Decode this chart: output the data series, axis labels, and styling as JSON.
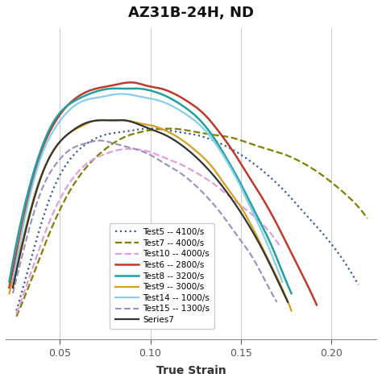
{
  "title": "AZ31B-24H, ND",
  "xlabel": "True Strain",
  "background_color": "#ffffff",
  "grid_color": "#cccccc",
  "xlim": [
    0.02,
    0.225
  ],
  "ylim": [
    0.0,
    1.08
  ],
  "xticks": [
    0.05,
    0.1,
    0.15,
    0.2
  ],
  "series": [
    {
      "label": "Test5 -- 4100/s",
      "color": "#3B5998",
      "linestyle": "dotted",
      "linewidth": 1.6,
      "points": [
        [
          0.026,
          0.1
        ],
        [
          0.035,
          0.3
        ],
        [
          0.045,
          0.5
        ],
        [
          0.055,
          0.62
        ],
        [
          0.065,
          0.68
        ],
        [
          0.075,
          0.71
        ],
        [
          0.085,
          0.72
        ],
        [
          0.095,
          0.73
        ],
        [
          0.105,
          0.73
        ],
        [
          0.115,
          0.72
        ],
        [
          0.125,
          0.71
        ],
        [
          0.135,
          0.69
        ],
        [
          0.145,
          0.66
        ],
        [
          0.155,
          0.62
        ],
        [
          0.165,
          0.57
        ],
        [
          0.175,
          0.51
        ],
        [
          0.185,
          0.44
        ],
        [
          0.195,
          0.37
        ],
        [
          0.205,
          0.29
        ],
        [
          0.215,
          0.19
        ]
      ]
    },
    {
      "label": "Test7 -- 4000/s",
      "color": "#808000",
      "linestyle": "dashed",
      "linewidth": 1.6,
      "points": [
        [
          0.026,
          0.08
        ],
        [
          0.035,
          0.22
        ],
        [
          0.045,
          0.38
        ],
        [
          0.055,
          0.51
        ],
        [
          0.065,
          0.6
        ],
        [
          0.075,
          0.66
        ],
        [
          0.085,
          0.7
        ],
        [
          0.095,
          0.72
        ],
        [
          0.105,
          0.73
        ],
        [
          0.115,
          0.73
        ],
        [
          0.125,
          0.72
        ],
        [
          0.135,
          0.71
        ],
        [
          0.145,
          0.7
        ],
        [
          0.155,
          0.68
        ],
        [
          0.165,
          0.66
        ],
        [
          0.175,
          0.64
        ],
        [
          0.185,
          0.61
        ],
        [
          0.195,
          0.57
        ],
        [
          0.205,
          0.52
        ],
        [
          0.215,
          0.46
        ],
        [
          0.22,
          0.42
        ]
      ]
    },
    {
      "label": "Test10 -- 4000/s",
      "color": "#DDA0DD",
      "linestyle": "dashed",
      "linewidth": 1.6,
      "points": [
        [
          0.026,
          0.09
        ],
        [
          0.035,
          0.25
        ],
        [
          0.045,
          0.42
        ],
        [
          0.055,
          0.54
        ],
        [
          0.063,
          0.6
        ],
        [
          0.07,
          0.63
        ],
        [
          0.078,
          0.65
        ],
        [
          0.085,
          0.66
        ],
        [
          0.092,
          0.66
        ],
        [
          0.1,
          0.65
        ],
        [
          0.108,
          0.63
        ],
        [
          0.116,
          0.61
        ],
        [
          0.125,
          0.58
        ],
        [
          0.135,
          0.54
        ],
        [
          0.145,
          0.49
        ],
        [
          0.155,
          0.44
        ],
        [
          0.165,
          0.38
        ],
        [
          0.172,
          0.32
        ]
      ]
    },
    {
      "label": "Test6 -- 2800/s",
      "color": "#C0392B",
      "linestyle": "solid",
      "linewidth": 1.8,
      "points": [
        [
          0.022,
          0.18
        ],
        [
          0.03,
          0.42
        ],
        [
          0.038,
          0.62
        ],
        [
          0.046,
          0.74
        ],
        [
          0.054,
          0.81
        ],
        [
          0.062,
          0.85
        ],
        [
          0.07,
          0.87
        ],
        [
          0.078,
          0.88
        ],
        [
          0.086,
          0.89
        ],
        [
          0.092,
          0.89
        ],
        [
          0.098,
          0.88
        ],
        [
          0.106,
          0.87
        ],
        [
          0.114,
          0.85
        ],
        [
          0.122,
          0.82
        ],
        [
          0.13,
          0.78
        ],
        [
          0.138,
          0.72
        ],
        [
          0.146,
          0.65
        ],
        [
          0.154,
          0.57
        ],
        [
          0.162,
          0.49
        ],
        [
          0.17,
          0.4
        ],
        [
          0.178,
          0.3
        ],
        [
          0.186,
          0.2
        ],
        [
          0.192,
          0.12
        ]
      ]
    },
    {
      "label": "Test8 -- 3200/s",
      "color": "#20A0A0",
      "linestyle": "solid",
      "linewidth": 1.8,
      "points": [
        [
          0.022,
          0.2
        ],
        [
          0.03,
          0.45
        ],
        [
          0.038,
          0.63
        ],
        [
          0.046,
          0.75
        ],
        [
          0.054,
          0.81
        ],
        [
          0.062,
          0.84
        ],
        [
          0.07,
          0.86
        ],
        [
          0.078,
          0.87
        ],
        [
          0.086,
          0.87
        ],
        [
          0.094,
          0.87
        ],
        [
          0.102,
          0.86
        ],
        [
          0.11,
          0.84
        ],
        [
          0.118,
          0.81
        ],
        [
          0.126,
          0.77
        ],
        [
          0.134,
          0.71
        ],
        [
          0.142,
          0.63
        ],
        [
          0.15,
          0.54
        ],
        [
          0.158,
          0.44
        ],
        [
          0.166,
          0.34
        ],
        [
          0.172,
          0.25
        ],
        [
          0.178,
          0.16
        ]
      ]
    },
    {
      "label": "Test9 -- 3000/s",
      "color": "#D4A020",
      "linestyle": "solid",
      "linewidth": 1.6,
      "points": [
        [
          0.022,
          0.16
        ],
        [
          0.03,
          0.36
        ],
        [
          0.038,
          0.54
        ],
        [
          0.046,
          0.65
        ],
        [
          0.054,
          0.71
        ],
        [
          0.062,
          0.74
        ],
        [
          0.07,
          0.76
        ],
        [
          0.078,
          0.76
        ],
        [
          0.086,
          0.76
        ],
        [
          0.094,
          0.75
        ],
        [
          0.102,
          0.74
        ],
        [
          0.11,
          0.72
        ],
        [
          0.118,
          0.69
        ],
        [
          0.126,
          0.65
        ],
        [
          0.134,
          0.6
        ],
        [
          0.142,
          0.53
        ],
        [
          0.15,
          0.46
        ],
        [
          0.158,
          0.37
        ],
        [
          0.165,
          0.28
        ],
        [
          0.172,
          0.19
        ],
        [
          0.178,
          0.1
        ]
      ]
    },
    {
      "label": "Test14 -- 1000/s",
      "color": "#87CEEB",
      "linestyle": "solid",
      "linewidth": 1.6,
      "points": [
        [
          0.024,
          0.2
        ],
        [
          0.032,
          0.46
        ],
        [
          0.04,
          0.64
        ],
        [
          0.048,
          0.74
        ],
        [
          0.056,
          0.8
        ],
        [
          0.064,
          0.83
        ],
        [
          0.072,
          0.84
        ],
        [
          0.08,
          0.85
        ],
        [
          0.088,
          0.85
        ],
        [
          0.096,
          0.84
        ],
        [
          0.104,
          0.83
        ],
        [
          0.112,
          0.81
        ],
        [
          0.12,
          0.78
        ],
        [
          0.128,
          0.74
        ],
        [
          0.136,
          0.68
        ],
        [
          0.144,
          0.6
        ],
        [
          0.15,
          0.53
        ],
        [
          0.156,
          0.45
        ],
        [
          0.162,
          0.37
        ],
        [
          0.168,
          0.28
        ],
        [
          0.173,
          0.2
        ]
      ]
    },
    {
      "label": "Test15 -- 1300/s",
      "color": "#9B8FC0",
      "linestyle": "dashed",
      "linewidth": 1.5,
      "points": [
        [
          0.024,
          0.16
        ],
        [
          0.032,
          0.36
        ],
        [
          0.04,
          0.52
        ],
        [
          0.048,
          0.61
        ],
        [
          0.056,
          0.66
        ],
        [
          0.064,
          0.68
        ],
        [
          0.072,
          0.69
        ],
        [
          0.08,
          0.68
        ],
        [
          0.086,
          0.67
        ],
        [
          0.092,
          0.66
        ],
        [
          0.1,
          0.64
        ],
        [
          0.108,
          0.61
        ],
        [
          0.116,
          0.58
        ],
        [
          0.124,
          0.54
        ],
        [
          0.132,
          0.49
        ],
        [
          0.14,
          0.43
        ],
        [
          0.148,
          0.36
        ],
        [
          0.156,
          0.29
        ],
        [
          0.163,
          0.21
        ],
        [
          0.17,
          0.13
        ]
      ]
    },
    {
      "label": "Series7",
      "color": "#333333",
      "linestyle": "solid",
      "linewidth": 1.6,
      "points": [
        [
          0.024,
          0.18
        ],
        [
          0.032,
          0.4
        ],
        [
          0.04,
          0.57
        ],
        [
          0.048,
          0.67
        ],
        [
          0.056,
          0.72
        ],
        [
          0.064,
          0.75
        ],
        [
          0.072,
          0.76
        ],
        [
          0.08,
          0.76
        ],
        [
          0.086,
          0.76
        ],
        [
          0.092,
          0.75
        ],
        [
          0.1,
          0.73
        ],
        [
          0.108,
          0.71
        ],
        [
          0.116,
          0.68
        ],
        [
          0.124,
          0.64
        ],
        [
          0.132,
          0.59
        ],
        [
          0.14,
          0.53
        ],
        [
          0.148,
          0.46
        ],
        [
          0.156,
          0.38
        ],
        [
          0.163,
          0.3
        ],
        [
          0.17,
          0.21
        ],
        [
          0.176,
          0.13
        ]
      ]
    }
  ]
}
